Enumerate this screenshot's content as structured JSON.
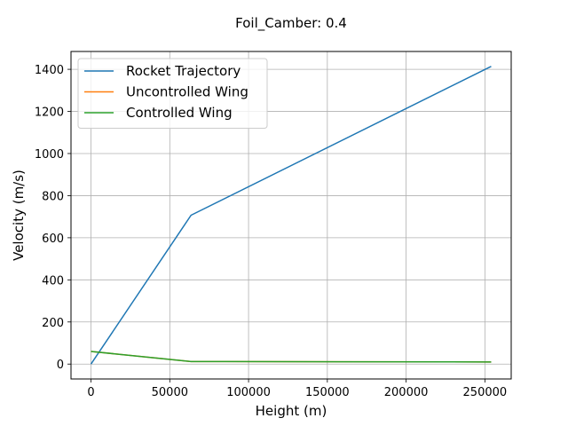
{
  "chart_data": {
    "type": "line",
    "title": "Foil_Camber: 0.4",
    "xlabel": "Height (m)",
    "ylabel": "Velocity (m/s)",
    "xlim": [
      -12700,
      266700
    ],
    "ylim": [
      -70.7,
      1484.7
    ],
    "xticks": [
      0,
      50000,
      100000,
      150000,
      200000,
      250000
    ],
    "yticks": [
      0,
      200,
      400,
      600,
      800,
      1000,
      1200,
      1400
    ],
    "grid": true,
    "legend_position": "top-left",
    "series": [
      {
        "name": "Rocket Trajectory",
        "color": "#1f77b4",
        "x": [
          0,
          63500,
          254000
        ],
        "y": [
          0,
          707,
          1414
        ]
      },
      {
        "name": "Uncontrolled Wing",
        "color": "#ff7f0e",
        "x": [
          0,
          63500,
          254000
        ],
        "y": [
          60,
          12,
          10
        ]
      },
      {
        "name": "Controlled Wing",
        "color": "#2ca02c",
        "x": [
          0,
          63500,
          254000
        ],
        "y": [
          60,
          12,
          10
        ]
      }
    ]
  }
}
